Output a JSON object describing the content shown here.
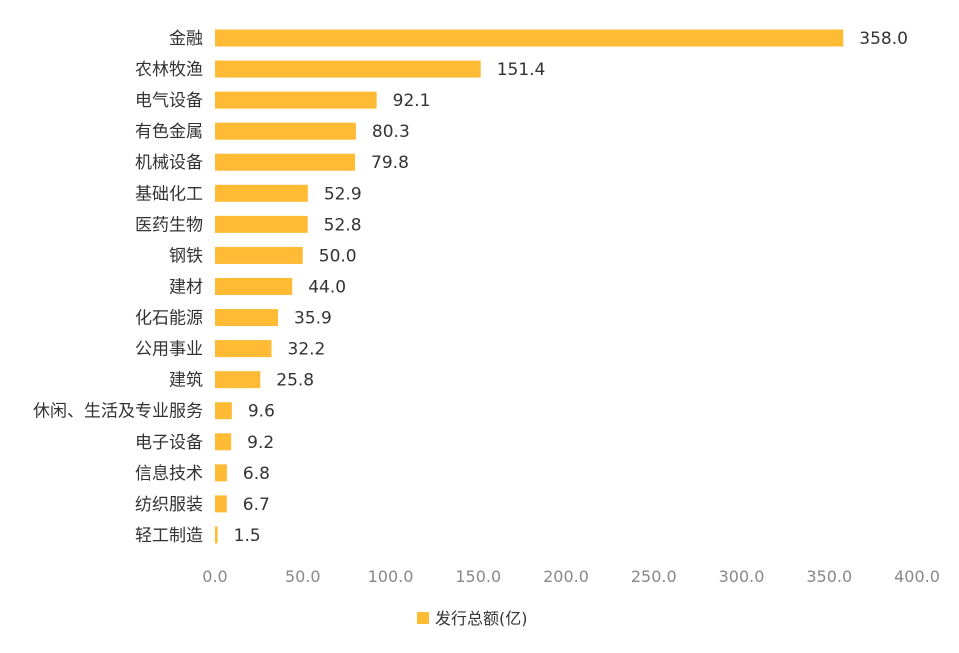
{
  "chart_data": {
    "type": "bar",
    "orientation": "horizontal",
    "categories": [
      "金融",
      "农林牧渔",
      "电气设备",
      "有色金属",
      "机械设备",
      "基础化工",
      "医药生物",
      "钢铁",
      "建材",
      "化石能源",
      "公用事业",
      "建筑",
      "休闲、生活及专业服务",
      "电子设备",
      "信息技术",
      "纺织服装",
      "轻工制造"
    ],
    "series": [
      {
        "name": "发行总额(亿)",
        "values": [
          358.0,
          151.4,
          92.1,
          80.3,
          79.8,
          52.9,
          52.8,
          50.0,
          44.0,
          35.9,
          32.2,
          25.8,
          9.6,
          9.2,
          6.8,
          6.7,
          1.5
        ],
        "labels": [
          "358.0",
          "151.4",
          "92.1",
          "80.3",
          "79.8",
          "52.9",
          "52.8",
          "50.0",
          "44.0",
          "35.9",
          "32.2",
          "25.8",
          "9.6",
          "9.2",
          "6.8",
          "6.7",
          "1.5"
        ],
        "color": "#FFBB33"
      }
    ],
    "xlim": [
      0,
      400
    ],
    "xticks": [
      "0.0",
      "50.0",
      "100.0",
      "150.0",
      "200.0",
      "250.0",
      "300.0",
      "350.0",
      "400.0"
    ],
    "grid": false,
    "legend_position": "bottom",
    "title": "",
    "xlabel": "",
    "ylabel": ""
  }
}
